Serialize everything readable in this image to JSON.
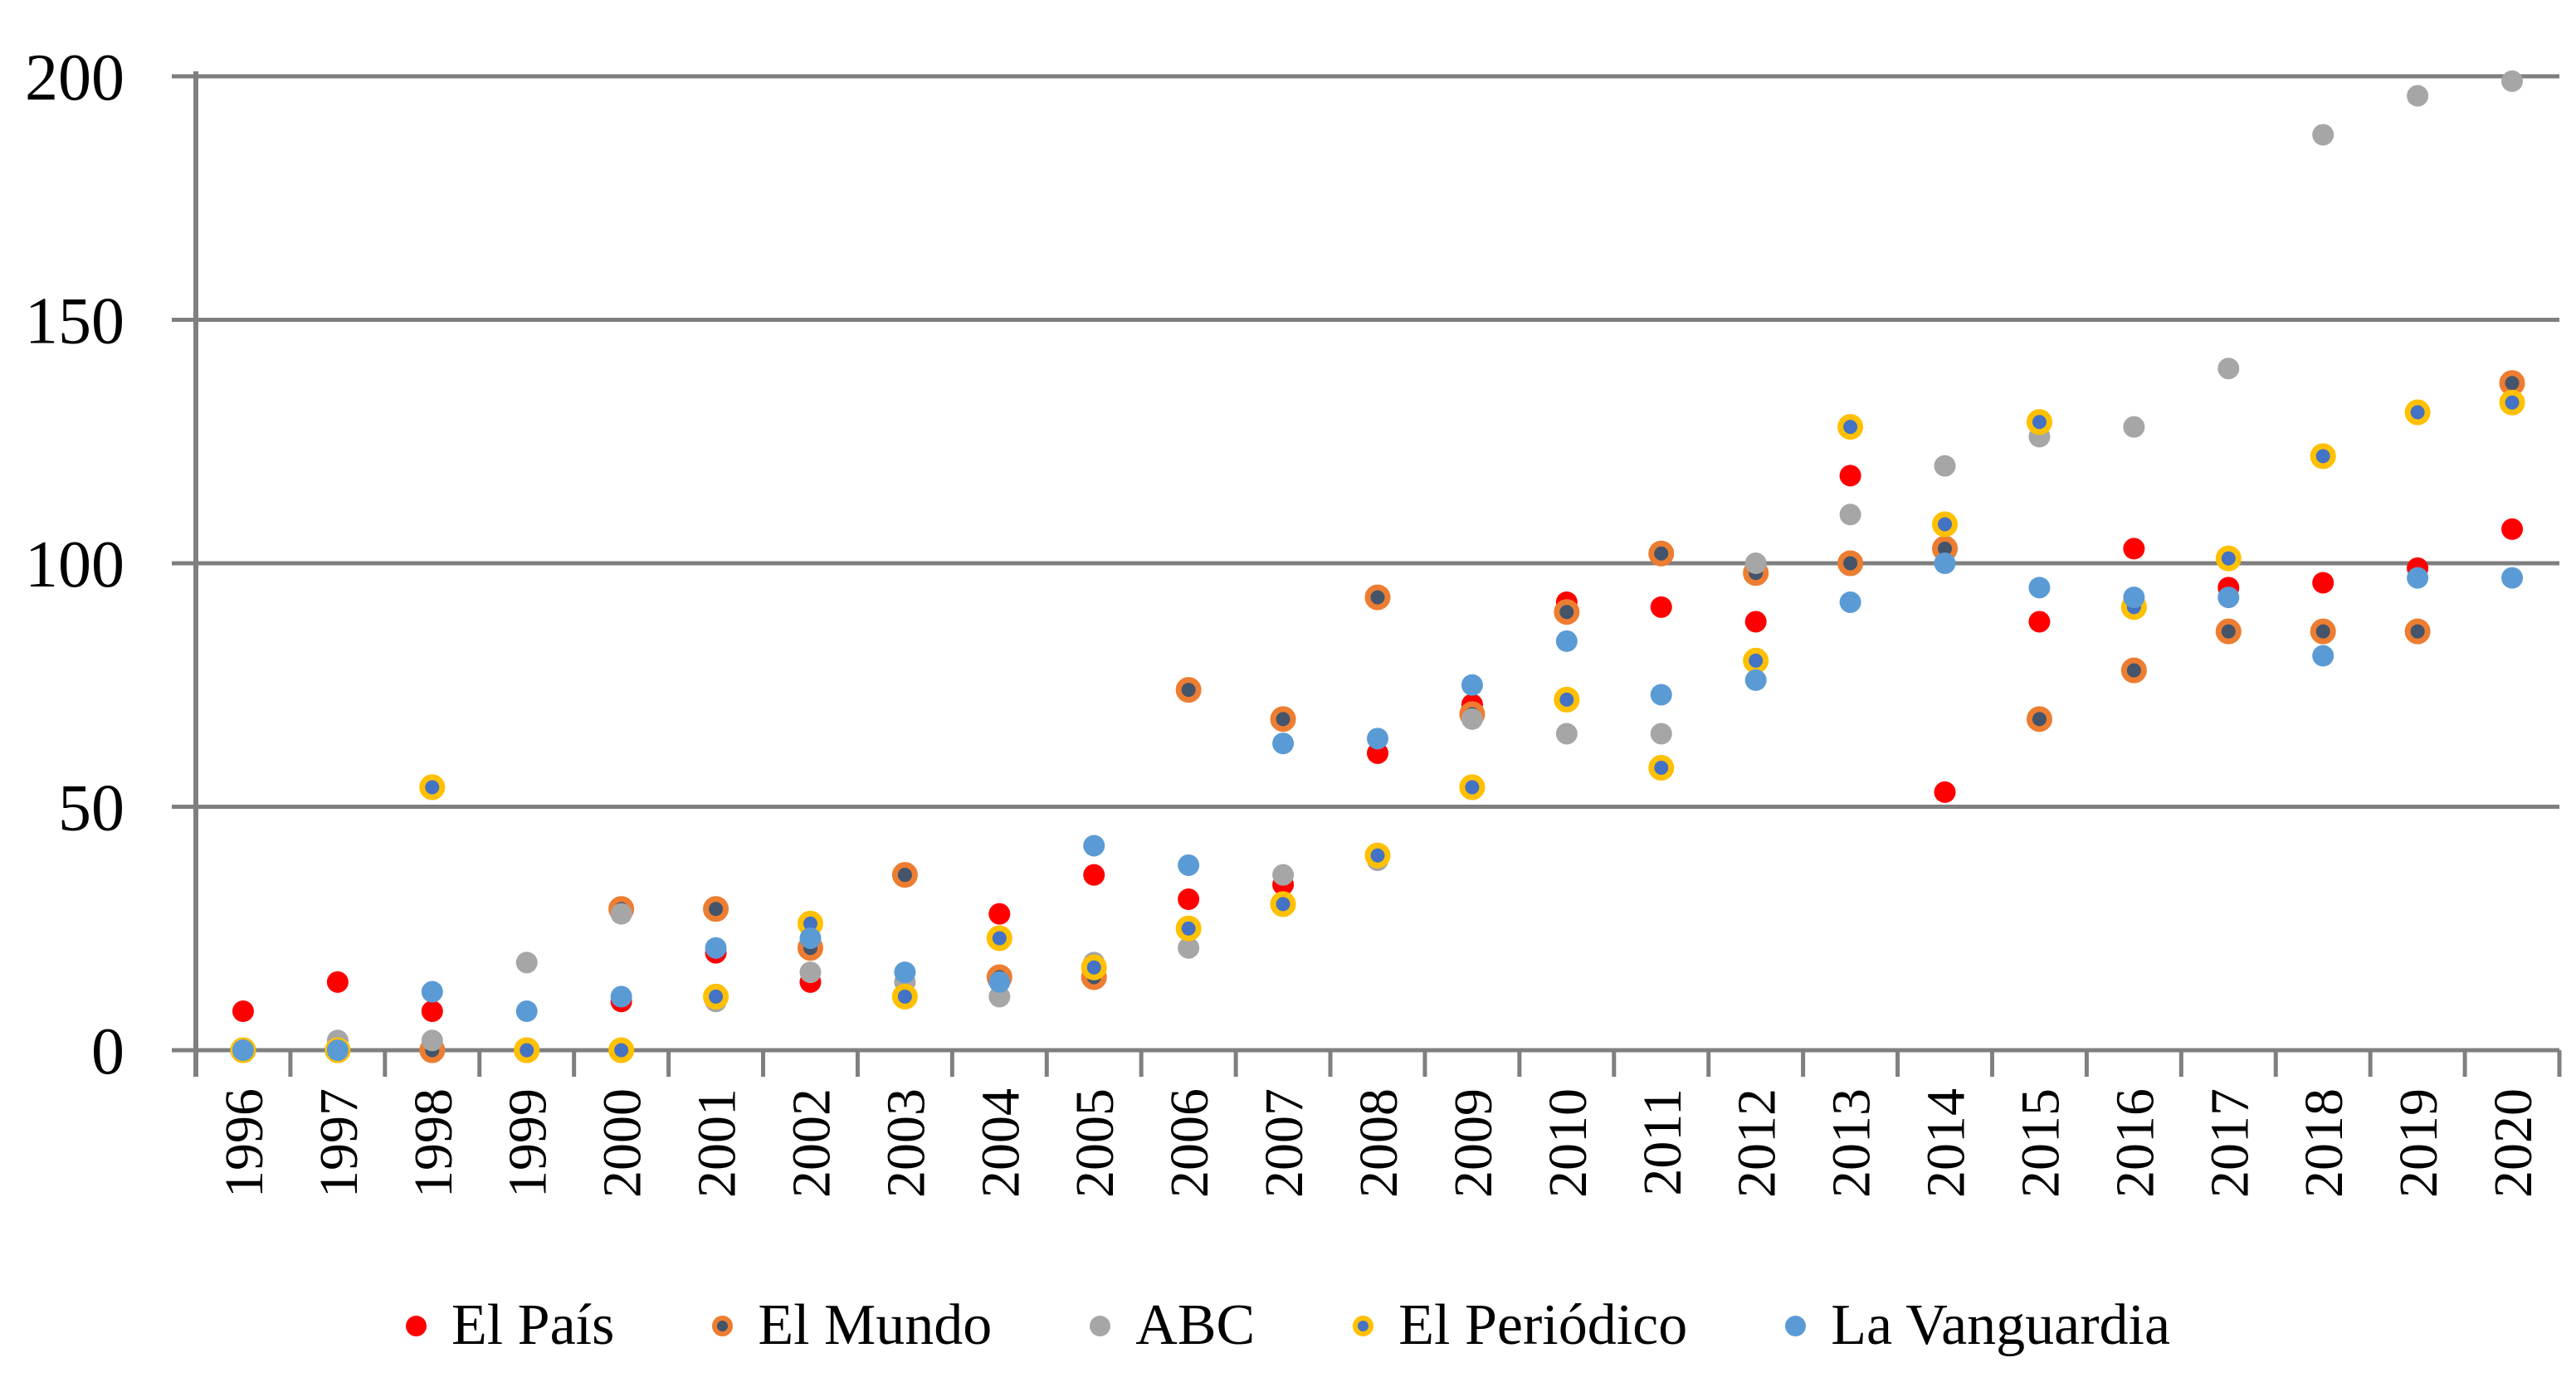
{
  "chart_data": {
    "type": "scatter",
    "title": "",
    "xlabel": "",
    "ylabel": "",
    "x": [
      1996,
      1997,
      1998,
      1999,
      2000,
      2001,
      2002,
      2003,
      2004,
      2005,
      2006,
      2007,
      2008,
      2009,
      2010,
      2011,
      2012,
      2013,
      2014,
      2015,
      2016,
      2017,
      2018,
      2019,
      2020
    ],
    "ylim": [
      0,
      200
    ],
    "yticks": [
      0,
      50,
      100,
      150,
      200
    ],
    "grid": "horizontal",
    "legend_position": "bottom",
    "axis_color": "#7F7F7F",
    "series": [
      {
        "name": "El País",
        "color": "#FF0000",
        "ring_color": null,
        "values": [
          8,
          14,
          8,
          0,
          10,
          20,
          14,
          11,
          28,
          36,
          31,
          34,
          61,
          71,
          92,
          91,
          88,
          118,
          53,
          88,
          103,
          95,
          96,
          99,
          107
        ]
      },
      {
        "name": "El Mundo",
        "color": "#44546A",
        "ring_color": "#ED7D31",
        "values": [
          0,
          0,
          0,
          0,
          29,
          29,
          21,
          36,
          15,
          15,
          74,
          68,
          93,
          69,
          90,
          102,
          98,
          100,
          103,
          68,
          78,
          86,
          86,
          86,
          137
        ]
      },
      {
        "name": "ABC",
        "color": "#A6A6A6",
        "ring_color": null,
        "values": [
          0,
          2,
          2,
          18,
          28,
          10,
          16,
          14,
          11,
          18,
          21,
          36,
          39,
          68,
          65,
          65,
          100,
          110,
          120,
          126,
          128,
          140,
          188,
          196,
          199
        ]
      },
      {
        "name": "El Periódico",
        "color": "#4472C4",
        "ring_color": "#FFC000",
        "values": [
          0,
          0,
          54,
          0,
          0,
          11,
          26,
          11,
          23,
          17,
          25,
          30,
          40,
          54,
          72,
          58,
          80,
          128,
          108,
          129,
          91,
          101,
          122,
          131,
          133
        ]
      },
      {
        "name": "La Vanguardia",
        "color": "#5B9BD5",
        "ring_color": null,
        "values": [
          0,
          0,
          12,
          8,
          11,
          21,
          23,
          16,
          14,
          42,
          38,
          63,
          64,
          75,
          84,
          73,
          76,
          92,
          100,
          95,
          93,
          93,
          81,
          97,
          97
        ]
      }
    ]
  }
}
